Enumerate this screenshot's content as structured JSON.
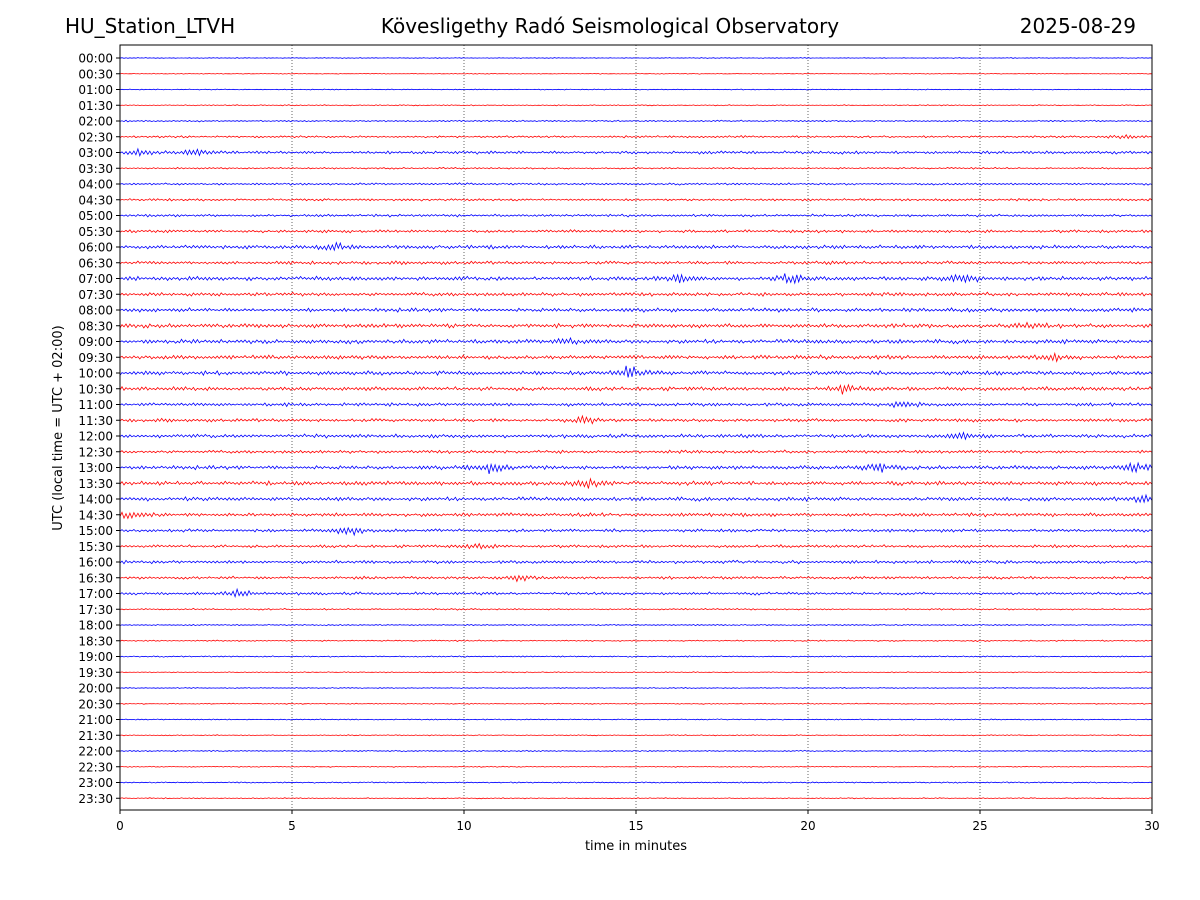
{
  "header": {
    "station": "HU_Station_LTVH",
    "title": "Kövesligethy Radó Seismological Observatory",
    "date": "2025-08-29"
  },
  "chart_data": {
    "type": "line",
    "chart_kind": "helicorder",
    "xlabel": "time in minutes",
    "ylabel": "UTC (local time = UTC + 02:00)",
    "xlim": [
      0,
      30
    ],
    "x_ticks": [
      "0",
      "5",
      "10",
      "15",
      "20",
      "25",
      "30"
    ],
    "grid": "vertical dotted lines at 5-minute intervals",
    "colors": {
      "even_rows": "#0000ff",
      "odd_rows": "#ff0000"
    },
    "rows": [
      {
        "label": "00:00",
        "amplitude": 0.3
      },
      {
        "label": "00:30",
        "amplitude": 0.3
      },
      {
        "label": "01:00",
        "amplitude": 0.3
      },
      {
        "label": "01:30",
        "amplitude": 0.4
      },
      {
        "label": "02:00",
        "amplitude": 0.6
      },
      {
        "label": "02:30",
        "amplitude": 0.8
      },
      {
        "label": "03:00",
        "amplitude": 1.2
      },
      {
        "label": "03:30",
        "amplitude": 0.6
      },
      {
        "label": "04:00",
        "amplitude": 0.8
      },
      {
        "label": "04:30",
        "amplitude": 0.9
      },
      {
        "label": "05:00",
        "amplitude": 1.0
      },
      {
        "label": "05:30",
        "amplitude": 1.1
      },
      {
        "label": "06:00",
        "amplitude": 1.4
      },
      {
        "label": "06:30",
        "amplitude": 1.3
      },
      {
        "label": "07:00",
        "amplitude": 1.6
      },
      {
        "label": "07:30",
        "amplitude": 1.4
      },
      {
        "label": "08:00",
        "amplitude": 1.5
      },
      {
        "label": "08:30",
        "amplitude": 1.6
      },
      {
        "label": "09:00",
        "amplitude": 1.6
      },
      {
        "label": "09:30",
        "amplitude": 1.6
      },
      {
        "label": "10:00",
        "amplitude": 1.6
      },
      {
        "label": "10:30",
        "amplitude": 1.5
      },
      {
        "label": "11:00",
        "amplitude": 1.3
      },
      {
        "label": "11:30",
        "amplitude": 1.3
      },
      {
        "label": "12:00",
        "amplitude": 1.4
      },
      {
        "label": "12:30",
        "amplitude": 1.2
      },
      {
        "label": "13:00",
        "amplitude": 1.5
      },
      {
        "label": "13:30",
        "amplitude": 1.6
      },
      {
        "label": "14:00",
        "amplitude": 1.5
      },
      {
        "label": "14:30",
        "amplitude": 1.4
      },
      {
        "label": "15:00",
        "amplitude": 1.2
      },
      {
        "label": "15:30",
        "amplitude": 1.1
      },
      {
        "label": "16:00",
        "amplitude": 1.2
      },
      {
        "label": "16:30",
        "amplitude": 1.1
      },
      {
        "label": "17:00",
        "amplitude": 1.1
      },
      {
        "label": "17:30",
        "amplitude": 0.6
      },
      {
        "label": "18:00",
        "amplitude": 0.5
      },
      {
        "label": "18:30",
        "amplitude": 0.5
      },
      {
        "label": "19:00",
        "amplitude": 0.5
      },
      {
        "label": "19:30",
        "amplitude": 0.4
      },
      {
        "label": "20:00",
        "amplitude": 0.4
      },
      {
        "label": "20:30",
        "amplitude": 0.4
      },
      {
        "label": "21:00",
        "amplitude": 0.4
      },
      {
        "label": "21:30",
        "amplitude": 0.4
      },
      {
        "label": "22:00",
        "amplitude": 0.5
      },
      {
        "label": "22:30",
        "amplitude": 0.4
      },
      {
        "label": "23:00",
        "amplitude": 0.5
      },
      {
        "label": "23:30",
        "amplitude": 0.4
      }
    ],
    "events": [
      {
        "row": "02:30",
        "minute": 29.3,
        "amplitude": 3
      },
      {
        "row": "03:00",
        "minute": 0.5,
        "amplitude": 4
      },
      {
        "row": "03:00",
        "minute": 2.2,
        "amplitude": 4
      },
      {
        "row": "06:00",
        "minute": 6.3,
        "amplitude": 6
      },
      {
        "row": "07:00",
        "minute": 19.5,
        "amplitude": 6
      },
      {
        "row": "07:00",
        "minute": 24.6,
        "amplitude": 7
      },
      {
        "row": "07:00",
        "minute": 16.2,
        "amplitude": 5
      },
      {
        "row": "08:30",
        "minute": 26.5,
        "amplitude": 4
      },
      {
        "row": "09:00",
        "minute": 13.0,
        "amplitude": 4
      },
      {
        "row": "09:30",
        "minute": 27.2,
        "amplitude": 4
      },
      {
        "row": "10:00",
        "minute": 14.8,
        "amplitude": 8
      },
      {
        "row": "10:30",
        "minute": 21.0,
        "amplitude": 5
      },
      {
        "row": "11:00",
        "minute": 22.8,
        "amplitude": 5
      },
      {
        "row": "11:30",
        "minute": 13.5,
        "amplitude": 4
      },
      {
        "row": "12:00",
        "minute": 24.5,
        "amplitude": 6
      },
      {
        "row": "13:00",
        "minute": 10.8,
        "amplitude": 7
      },
      {
        "row": "13:00",
        "minute": 22.0,
        "amplitude": 5
      },
      {
        "row": "13:00",
        "minute": 29.5,
        "amplitude": 5
      },
      {
        "row": "13:30",
        "minute": 13.6,
        "amplitude": 5
      },
      {
        "row": "14:00",
        "minute": 29.8,
        "amplitude": 5
      },
      {
        "row": "14:30",
        "minute": 0.3,
        "amplitude": 6
      },
      {
        "row": "15:00",
        "minute": 6.6,
        "amplitude": 7
      },
      {
        "row": "15:30",
        "minute": 10.4,
        "amplitude": 4
      },
      {
        "row": "16:30",
        "minute": 11.6,
        "amplitude": 5
      },
      {
        "row": "17:00",
        "minute": 3.5,
        "amplitude": 6
      }
    ]
  }
}
